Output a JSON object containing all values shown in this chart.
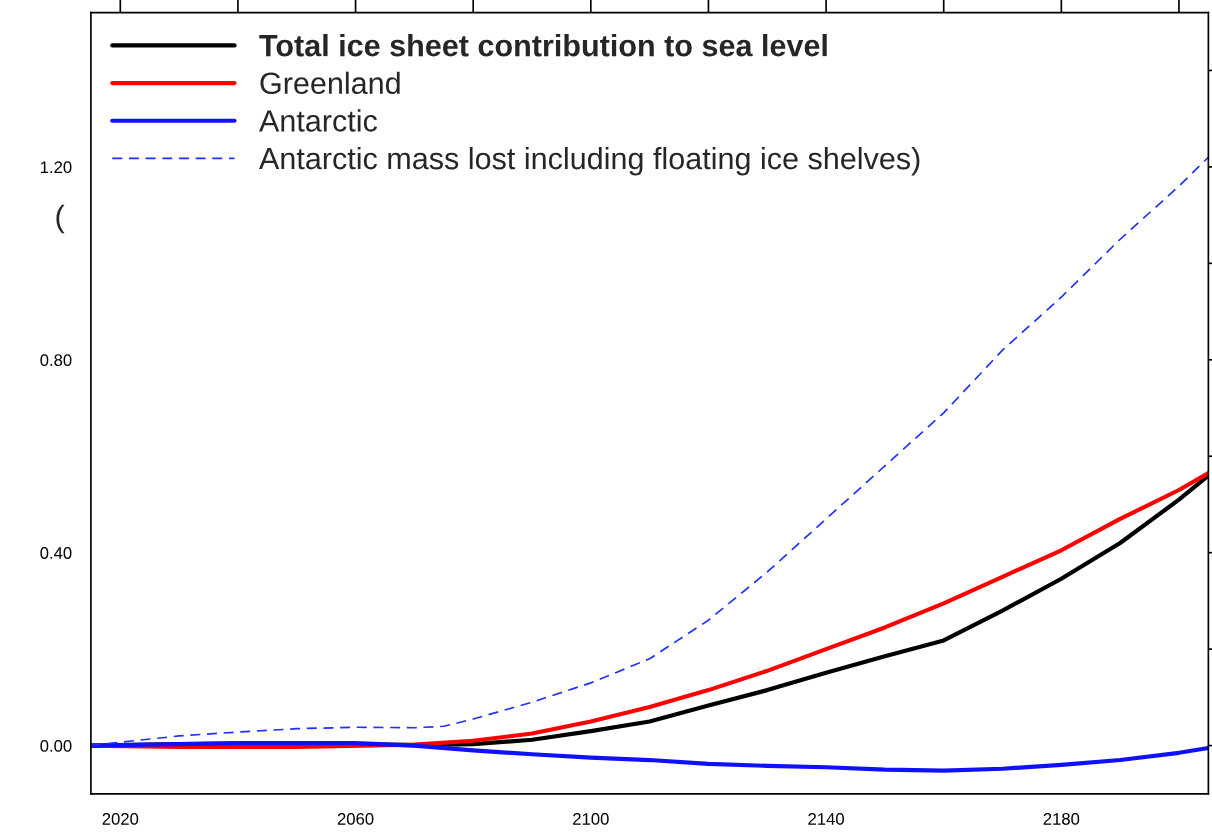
{
  "chart_data": {
    "type": "line",
    "annotations": [
      "("
    ],
    "xlim": [
      2015,
      2205
    ],
    "xticks": [
      2020,
      {
        "value": 2040,
        "label": null
      },
      2060,
      {
        "value": 2080,
        "label": null
      },
      2100,
      {
        "value": 2120,
        "label": null
      },
      2140,
      {
        "value": 2160,
        "label": null
      },
      2180,
      {
        "value": 2200,
        "label": null
      }
    ],
    "ylim": [
      -0.1,
      1.52
    ],
    "yticks": [
      {
        "value": 0,
        "label": "0.00"
      },
      {
        "value": 0.2,
        "label": null
      },
      {
        "value": 0.4,
        "label": "0.40"
      },
      {
        "value": 0.6,
        "label": null
      },
      {
        "value": 0.8,
        "label": "0.80"
      },
      {
        "value": 1.0,
        "label": null
      },
      {
        "value": 1.2,
        "label": "1.20"
      },
      {
        "value": 1.4,
        "label": null
      }
    ],
    "grid": false,
    "legend": "top left",
    "series": [
      {
        "name": "Total ice sheet contribution to sea level",
        "color": "#000000",
        "line_style": "solid",
        "x": [
          2015,
          2030,
          2050,
          2070,
          2080,
          2090,
          2100,
          2110,
          2120,
          2130,
          2140,
          2150,
          2160,
          2170,
          2180,
          2190,
          2200,
          2205
        ],
        "values": [
          0,
          0.003,
          0.005,
          0.001,
          0.003,
          0.012,
          0.03,
          0.05,
          0.083,
          0.115,
          0.151,
          0.185,
          0.218,
          0.28,
          0.346,
          0.42,
          0.51,
          0.56
        ]
      },
      {
        "name": "Greenland",
        "color": "#ff0000",
        "line_style": "solid",
        "x": [
          2015,
          2030,
          2050,
          2070,
          2080,
          2090,
          2100,
          2110,
          2120,
          2130,
          2140,
          2150,
          2160,
          2170,
          2180,
          2190,
          2200,
          2205
        ],
        "values": [
          0,
          -0.003,
          -0.003,
          0.002,
          0.01,
          0.025,
          0.05,
          0.08,
          0.115,
          0.155,
          0.2,
          0.245,
          0.295,
          0.35,
          0.405,
          0.47,
          0.53,
          0.565
        ]
      },
      {
        "name": "Antarctic",
        "color": "#1010ff",
        "line_style": "solid",
        "x": [
          2015,
          2040,
          2060,
          2070,
          2080,
          2090,
          2100,
          2110,
          2120,
          2130,
          2140,
          2150,
          2160,
          2170,
          2180,
          2190,
          2200,
          2205
        ],
        "values": [
          0,
          0.005,
          0.005,
          0.0,
          -0.01,
          -0.018,
          -0.025,
          -0.03,
          -0.038,
          -0.042,
          -0.045,
          -0.05,
          -0.052,
          -0.048,
          -0.04,
          -0.03,
          -0.015,
          -0.005
        ]
      },
      {
        "name": "Antarctic mass lost including floating ice shelves)",
        "color": "#2030ff",
        "line_style": "dashed",
        "x": [
          2015,
          2020,
          2030,
          2040,
          2050,
          2060,
          2070,
          2075,
          2080,
          2090,
          2100,
          2110,
          2120,
          2130,
          2140,
          2150,
          2160,
          2170,
          2180,
          2190,
          2200,
          2205
        ],
        "values": [
          0,
          0.007,
          0.02,
          0.028,
          0.035,
          0.038,
          0.037,
          0.04,
          0.055,
          0.09,
          0.13,
          0.18,
          0.26,
          0.36,
          0.47,
          0.58,
          0.69,
          0.82,
          0.93,
          1.05,
          1.16,
          1.22
        ]
      }
    ]
  }
}
